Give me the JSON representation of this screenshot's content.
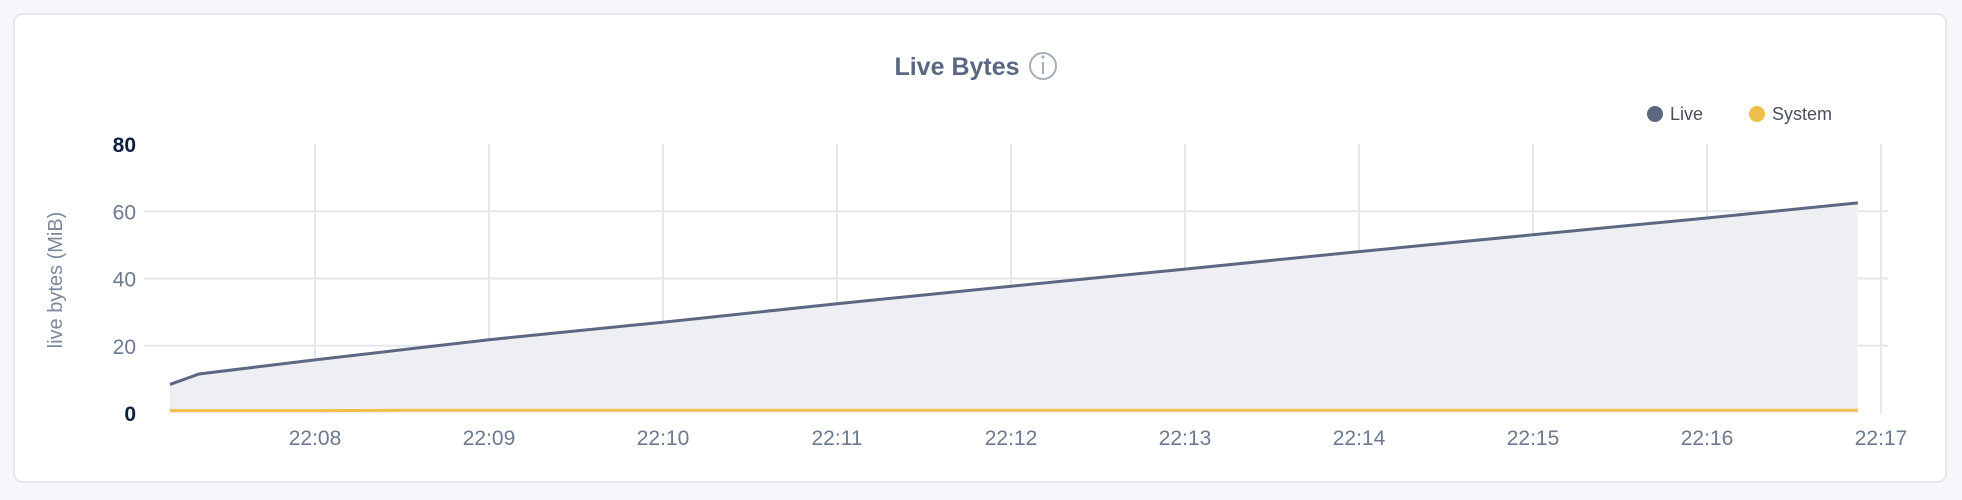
{
  "chart_data": {
    "type": "area",
    "title": "Live Bytes",
    "info_icon": "info-circle-icon",
    "ylabel": "live bytes (MiB)",
    "xlabel": "",
    "ylim": [
      0,
      80
    ],
    "yticks": [
      "0",
      "20",
      "40",
      "60",
      "80"
    ],
    "xticks": [
      "22:08",
      "22:09",
      "22:10",
      "22:11",
      "22:12",
      "22:13",
      "22:14",
      "22:15",
      "22:16",
      "22:17"
    ],
    "grid": true,
    "legend_position": "top-right",
    "x": [
      "22:07:10",
      "22:07:20",
      "22:08:00",
      "22:08:30",
      "22:09:00",
      "22:10:00",
      "22:11:00",
      "22:12:00",
      "22:13:00",
      "22:14:00",
      "22:15:00",
      "22:16:00",
      "22:16:52"
    ],
    "series": [
      {
        "name": "Live",
        "color": "#5c6782",
        "fill": "#eeeff3",
        "values": [
          8.5,
          11.6,
          15.8,
          18.8,
          21.8,
          27.0,
          32.5,
          37.7,
          42.8,
          48.0,
          53.0,
          58.0,
          62.5
        ]
      },
      {
        "name": "System",
        "color": "#eebf4a",
        "values": [
          0.7,
          0.7,
          0.7,
          0.8,
          0.8,
          0.8,
          0.8,
          0.8,
          0.8,
          0.8,
          0.8,
          0.8,
          0.8
        ]
      }
    ]
  }
}
